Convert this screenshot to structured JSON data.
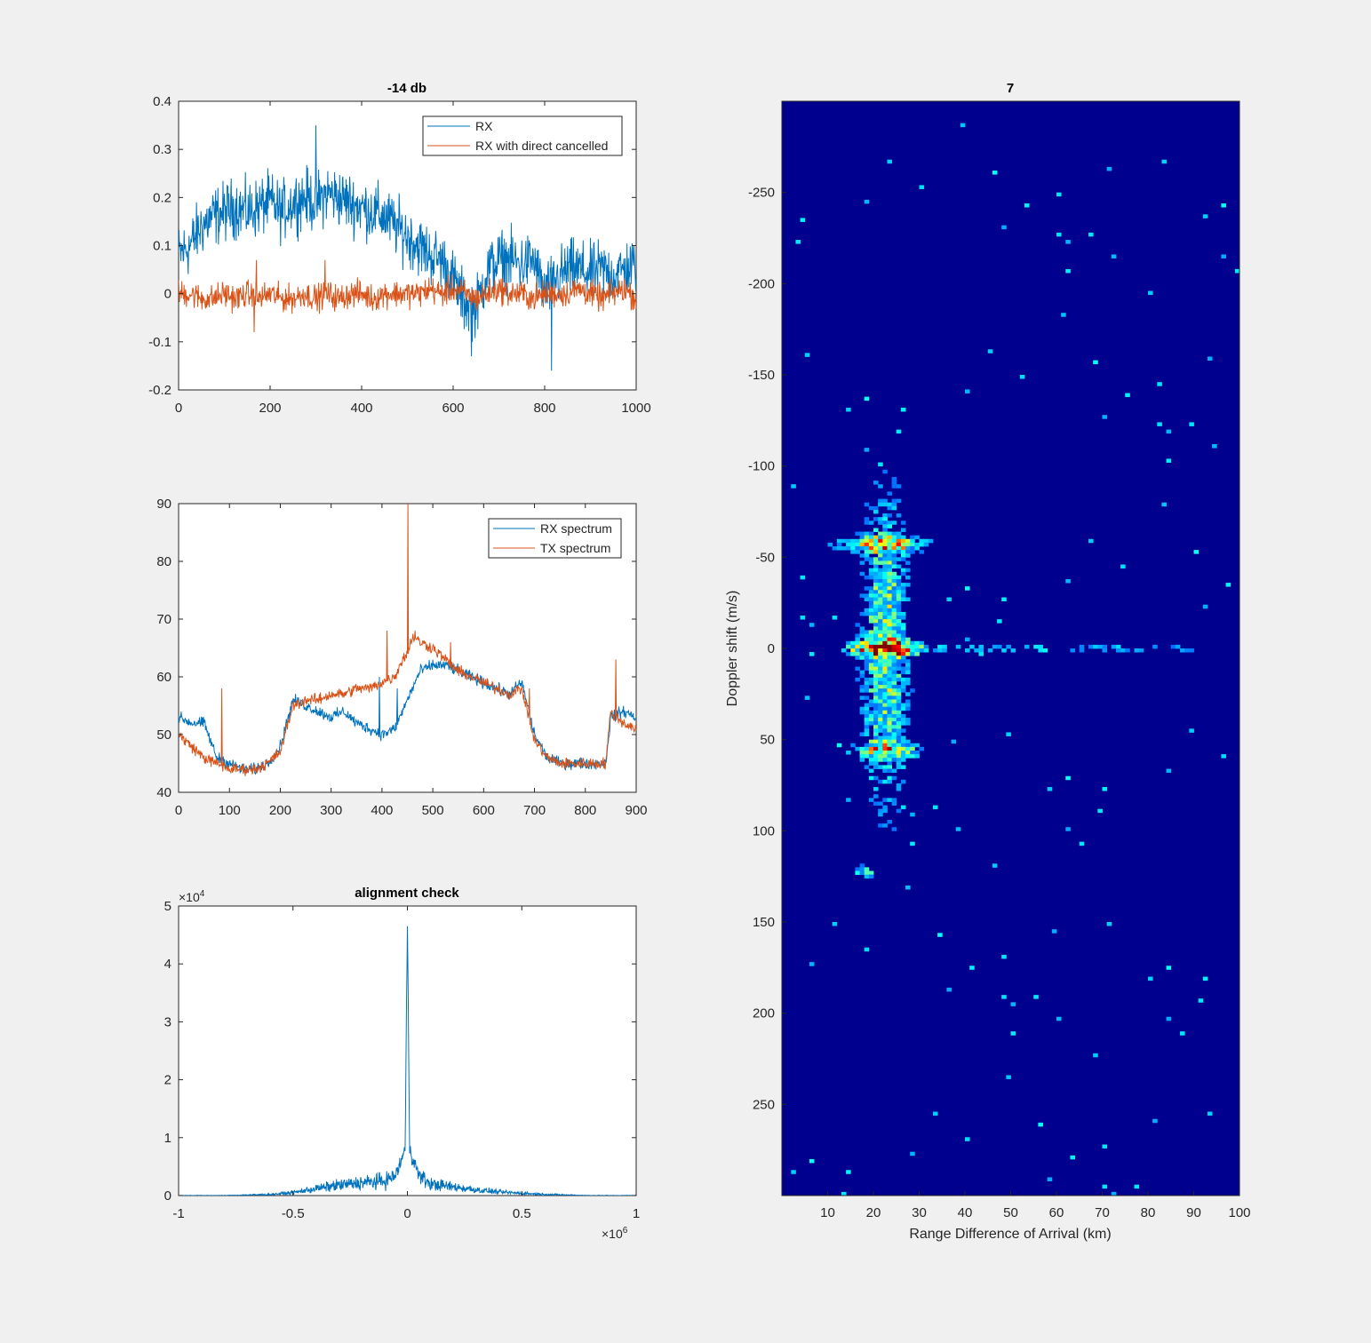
{
  "figure": {
    "background": "#f0f0f0",
    "axes_background": "#ffffff",
    "heatmap_background": "#00008f"
  },
  "colors": {
    "series1": "#0072bd",
    "series2": "#d95319",
    "axis": "#262626"
  },
  "chart_data": [
    {
      "id": "time-signal",
      "type": "line",
      "title": "-14 db",
      "xlabel": "",
      "ylabel": "",
      "xlim": [
        0,
        1000
      ],
      "ylim": [
        -0.2,
        0.4
      ],
      "xticks": [
        "0",
        "200",
        "400",
        "600",
        "800",
        "1000"
      ],
      "yticks": [
        "-0.2",
        "-0.1",
        "0",
        "0.1",
        "0.2",
        "0.3",
        "0.4"
      ],
      "legend": {
        "placement": "top-right",
        "entries": [
          "RX",
          "RX with direct cancelled"
        ]
      },
      "series": [
        {
          "name": "RX",
          "color": "#0072bd",
          "x": [
            0,
            25,
            50,
            75,
            100,
            125,
            150,
            175,
            200,
            225,
            250,
            275,
            300,
            325,
            350,
            375,
            400,
            425,
            450,
            475,
            500,
            525,
            550,
            575,
            600,
            625,
            650,
            675,
            700,
            725,
            750,
            775,
            800,
            825,
            850,
            875,
            900,
            925,
            950,
            975,
            1000
          ],
          "y": [
            0.08,
            0.1,
            0.14,
            0.16,
            0.17,
            0.18,
            0.17,
            0.18,
            0.19,
            0.17,
            0.19,
            0.2,
            0.19,
            0.21,
            0.2,
            0.19,
            0.18,
            0.17,
            0.16,
            0.14,
            0.12,
            0.1,
            0.08,
            0.07,
            0.03,
            -0.02,
            -0.03,
            0.05,
            0.07,
            0.07,
            0.06,
            0.07,
            0.0,
            0.03,
            0.05,
            0.05,
            0.04,
            0.05,
            0.04,
            0.05,
            0.06
          ],
          "peaks": [
            [
              300,
              0.35
            ],
            [
              640,
              -0.13
            ],
            [
              815,
              -0.16
            ]
          ],
          "noise": 0.055
        },
        {
          "name": "RX with direct cancelled",
          "color": "#d95319",
          "x": [
            0,
            25,
            50,
            75,
            100,
            125,
            150,
            175,
            200,
            225,
            250,
            275,
            300,
            325,
            350,
            375,
            400,
            425,
            450,
            475,
            500,
            525,
            550,
            575,
            600,
            625,
            650,
            675,
            700,
            725,
            750,
            775,
            800,
            825,
            850,
            875,
            900,
            925,
            950,
            975,
            1000
          ],
          "y": [
            0.0,
            0.0,
            -0.01,
            -0.01,
            0.0,
            -0.01,
            0.0,
            -0.01,
            0.0,
            -0.01,
            -0.01,
            0.0,
            -0.01,
            0.0,
            -0.01,
            0.0,
            0.0,
            -0.01,
            0.0,
            0.0,
            0.0,
            0.0,
            0.01,
            0.0,
            0.01,
            0.0,
            -0.01,
            0.0,
            0.01,
            0.0,
            0.0,
            -0.01,
            0.0,
            0.0,
            0.0,
            0.01,
            0.0,
            -0.01,
            0.0,
            0.01,
            -0.01
          ],
          "peaks": [
            [
              165,
              -0.08
            ],
            [
              170,
              0.07
            ],
            [
              320,
              0.07
            ]
          ],
          "noise": 0.025
        }
      ]
    },
    {
      "id": "spectrum",
      "type": "line",
      "title": "",
      "xlabel": "",
      "ylabel": "",
      "xlim": [
        0,
        900
      ],
      "ylim": [
        40,
        90
      ],
      "xticks": [
        "0",
        "100",
        "200",
        "300",
        "400",
        "500",
        "600",
        "700",
        "800",
        "900"
      ],
      "yticks": [
        "40",
        "50",
        "60",
        "70",
        "80",
        "90"
      ],
      "legend": {
        "placement": "top-right",
        "entries": [
          "RX spectrum",
          "TX spectrum"
        ]
      },
      "series": [
        {
          "name": "RX spectrum",
          "color": "#0072bd",
          "x": [
            0,
            25,
            50,
            75,
            100,
            125,
            150,
            175,
            200,
            225,
            250,
            275,
            300,
            325,
            350,
            375,
            400,
            425,
            450,
            475,
            500,
            525,
            550,
            575,
            600,
            625,
            650,
            675,
            700,
            725,
            750,
            775,
            800,
            825,
            840,
            850,
            875,
            900
          ],
          "y": [
            53,
            52,
            52,
            46,
            45,
            44,
            44,
            45,
            48,
            56,
            55,
            54,
            53,
            54,
            52,
            51,
            50,
            51,
            56,
            61,
            62,
            62,
            61,
            60,
            59,
            58,
            57,
            59,
            50,
            46,
            45,
            45,
            45,
            45,
            45,
            53,
            54,
            53
          ],
          "peaks": [
            [
              395,
              60
            ],
            [
              430,
              58
            ]
          ],
          "noise": 0.9
        },
        {
          "name": "TX spectrum",
          "color": "#d95319",
          "x": [
            0,
            25,
            50,
            75,
            100,
            125,
            150,
            175,
            200,
            225,
            250,
            275,
            300,
            325,
            350,
            375,
            400,
            425,
            440,
            450,
            460,
            475,
            500,
            525,
            550,
            575,
            600,
            625,
            650,
            675,
            700,
            725,
            750,
            775,
            800,
            825,
            840,
            850,
            875,
            900
          ],
          "y": [
            50,
            48,
            46,
            45,
            44,
            44,
            44,
            45,
            47,
            55,
            56,
            56,
            57,
            57,
            58,
            58,
            59,
            60,
            63,
            64,
            67,
            66,
            65,
            63,
            61,
            60,
            59,
            58,
            57,
            58,
            49,
            46,
            45,
            45,
            45,
            45,
            45,
            54,
            52,
            51
          ],
          "peaks": [
            [
              451,
              90
            ],
            [
              85,
              58
            ],
            [
              410,
              68
            ],
            [
              465,
              68
            ],
            [
              535,
              66
            ],
            [
              690,
              58
            ],
            [
              860,
              63
            ]
          ],
          "noise": 0.9
        }
      ]
    },
    {
      "id": "alignment",
      "type": "line",
      "title": "alignment check",
      "xlabel": "",
      "ylabel": "",
      "xlim": [
        -1,
        1
      ],
      "ylim": [
        0,
        5
      ],
      "x_exponent": "×10",
      "x_exponent_power": "6",
      "y_exponent": "×10",
      "y_exponent_power": "4",
      "xticks": [
        "-1",
        "-0.5",
        "0",
        "0.5",
        "1"
      ],
      "yticks": [
        "0",
        "1",
        "2",
        "3",
        "4",
        "5"
      ],
      "series": [
        {
          "name": "",
          "color": "#0072bd",
          "x": [
            -1,
            -0.8,
            -0.6,
            -0.5,
            -0.4,
            -0.3,
            -0.2,
            -0.1,
            -0.05,
            -0.01,
            0,
            0.01,
            0.05,
            0.1,
            0.2,
            0.3,
            0.4,
            0.5,
            0.6,
            0.8,
            1
          ],
          "y": [
            0,
            0,
            0.02,
            0.05,
            0.12,
            0.18,
            0.22,
            0.25,
            0.35,
            0.8,
            4.7,
            0.8,
            0.35,
            0.2,
            0.15,
            0.1,
            0.06,
            0.04,
            0.02,
            0,
            0
          ],
          "noise": 0.12
        }
      ]
    },
    {
      "id": "range-doppler",
      "type": "heatmap",
      "title": "7",
      "xlabel": "Range Difference of Arrival (km)",
      "ylabel": "Doppler shift (m/s)",
      "xlim": [
        0,
        100
      ],
      "ylim": [
        -300,
        300
      ],
      "y_reversed": true,
      "xticks": [
        "10",
        "20",
        "30",
        "40",
        "50",
        "60",
        "70",
        "80",
        "90",
        "100"
      ],
      "yticks": [
        "-250",
        "-200",
        "-150",
        "-100",
        "-50",
        "0",
        "50",
        "100",
        "150",
        "200",
        "250"
      ],
      "colormap": "jet",
      "blobs": [
        {
          "x_center": 22.5,
          "x_width": 5,
          "y_center": 0,
          "y_width": 85,
          "intensity": 0.55
        },
        {
          "x_center": 23,
          "x_width": 7,
          "y_center": 0,
          "y_width": 4,
          "intensity": 1.0
        },
        {
          "x_center": 22,
          "x_width": 10,
          "y_center": -57,
          "y_width": 4,
          "intensity": 0.6
        },
        {
          "x_center": 23,
          "x_width": 8,
          "y_center": 56,
          "y_width": 4,
          "intensity": 0.55
        },
        {
          "x_center": 18,
          "x_width": 2,
          "y_center": 122,
          "y_width": 3,
          "intensity": 0.5
        },
        {
          "x_center": 60,
          "x_width": 45,
          "y_center": 0,
          "y_width": 2,
          "intensity": 0.3
        }
      ]
    }
  ]
}
